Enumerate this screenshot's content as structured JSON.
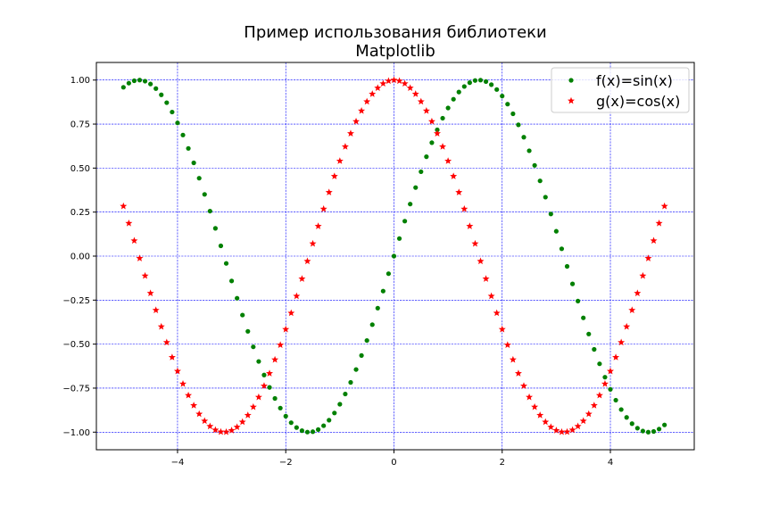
{
  "chart_data": {
    "type": "scatter",
    "title_lines": [
      "Пример использования библиотеки",
      "Matplotlib"
    ],
    "xlabel": "",
    "ylabel": "",
    "xlim": [
      -5.5,
      5.55
    ],
    "ylim": [
      -1.1,
      1.1
    ],
    "xticks": [
      -4,
      -2,
      0,
      2,
      4
    ],
    "xtick_labels": [
      "−4",
      "−2",
      "0",
      "2",
      "4"
    ],
    "yticks": [
      -1.0,
      -0.75,
      -0.5,
      -0.25,
      0.0,
      0.25,
      0.5,
      0.75,
      1.0
    ],
    "ytick_labels": [
      "−1.00",
      "−0.75",
      "−0.50",
      "−0.25",
      "0.00",
      "0.25",
      "0.50",
      "0.75",
      "1.00"
    ],
    "grid": true,
    "grid_color": "#0000ff",
    "legend_position": "top-right",
    "x_domain": [
      -5,
      5
    ],
    "sample_count": 101,
    "series": [
      {
        "name": "f(x)=sin(x)",
        "function": "sin",
        "marker": "circle",
        "color": "#008000"
      },
      {
        "name": "g(x)=cos(x)",
        "function": "cos",
        "marker": "star",
        "color": "#ff0000"
      }
    ]
  }
}
